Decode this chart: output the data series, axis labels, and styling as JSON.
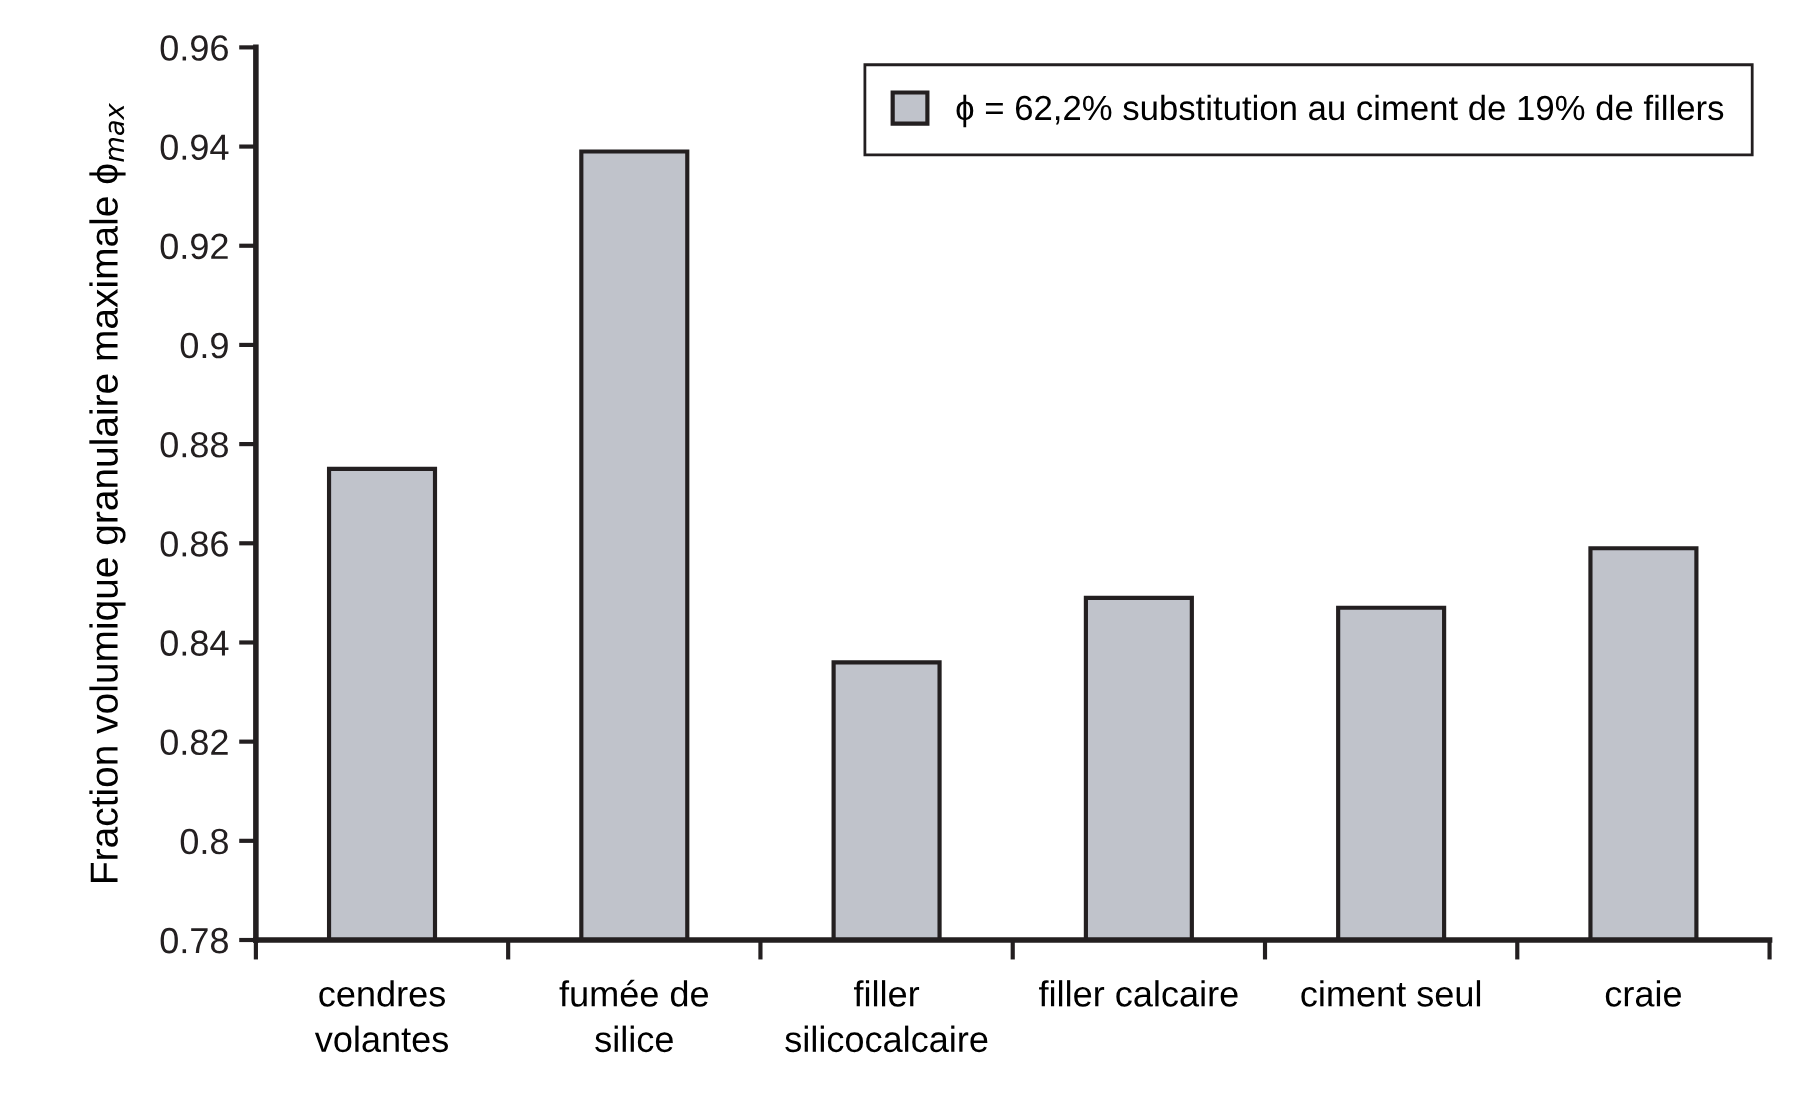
{
  "chart_data": {
    "type": "bar",
    "ylabel": "Fraction volumique granulaire maximale ϕ$_{max}$",
    "categories": [
      "cendres\nvolantes",
      "fumée de\nsilice",
      "filler\nsilicocalcaire",
      "filler calcaire",
      "ciment seul",
      "craie"
    ],
    "series": [
      {
        "name": "ϕ = 62,2% substitution au ciment de 19% de fillers",
        "color": "#c0c3cb",
        "values": [
          0.875,
          0.939,
          0.836,
          0.849,
          0.847,
          0.859
        ]
      }
    ],
    "ylim": [
      0.78,
      0.96
    ],
    "yticks": [
      0.78,
      0.8,
      0.82,
      0.84,
      0.86,
      0.88,
      0.9,
      0.92,
      0.94,
      0.96
    ],
    "grid": false,
    "legend": "top right"
  }
}
